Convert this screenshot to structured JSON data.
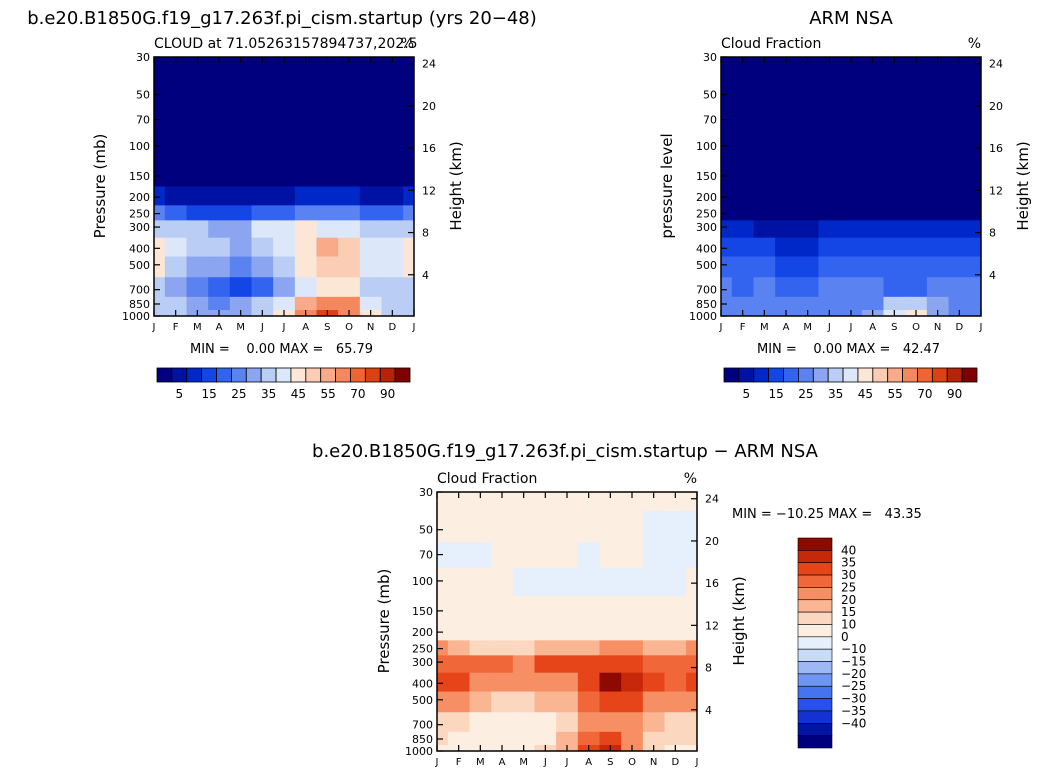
{
  "colors": {
    "cloud_scale": [
      "#00007f",
      "#0012a3",
      "#0028c8",
      "#1446e6",
      "#3264f0",
      "#5a82f0",
      "#8ca5f0",
      "#b9cdf5",
      "#dce8fa",
      "#fce6d6",
      "#fbcdb4",
      "#f9ab89",
      "#f5875f",
      "#f06432",
      "#dc4114",
      "#b4230a",
      "#7f0000"
    ],
    "diff_scale": [
      "#00007f",
      "#0014a5",
      "#1432d2",
      "#2850f0",
      "#4673f0",
      "#6e96f0",
      "#9cb9f5",
      "#c8dbfa",
      "#e6effc",
      "#fdeee2",
      "#fcd7bf",
      "#fab592",
      "#f68f64",
      "#f0683a",
      "#e64419",
      "#c8280a",
      "#8c0a00"
    ]
  },
  "chart_data": [
    {
      "type": "heatmap",
      "title": "b.e20.B1850G.f19_g17.263f.pi_cism.startup (yrs 20−48)",
      "subtitle_left": "CLOUD at 71.05263157894737,202.5",
      "subtitle_right": "%",
      "ylabel": "Pressure (mb)",
      "ylabel_right": "Height (km)",
      "x_ticks": [
        "J",
        "F",
        "M",
        "A",
        "M",
        "J",
        "J",
        "A",
        "S",
        "O",
        "N",
        "D",
        "J"
      ],
      "y_ticks": [
        "30",
        "50",
        "70",
        "100",
        "150",
        "200",
        "250",
        "300",
        "400",
        "500",
        "700",
        "850",
        "1000"
      ],
      "y_ticks_right": [
        "24",
        "20",
        "16",
        "12",
        "8",
        "4"
      ],
      "stats": "MIN =    0.00 MAX =   65.79",
      "colorbar_labels": [
        "5",
        "15",
        "25",
        "35",
        "45",
        "55",
        "70",
        "90"
      ],
      "levels": [
        30,
        50,
        70,
        100,
        150,
        200,
        250,
        300,
        400,
        500,
        700,
        850,
        1000
      ],
      "values": [
        [
          0,
          0,
          0,
          0,
          0,
          0,
          0,
          0,
          0,
          0,
          0,
          0,
          0
        ],
        [
          0,
          0,
          0,
          0,
          0,
          0,
          0,
          0,
          0,
          0,
          0,
          0,
          0
        ],
        [
          0,
          0,
          0,
          0,
          0,
          0,
          0,
          0,
          0,
          0,
          0,
          0,
          0
        ],
        [
          0,
          0,
          0,
          0,
          0,
          0,
          0,
          0,
          0,
          0,
          0,
          0,
          0
        ],
        [
          1,
          1,
          1,
          1,
          1,
          1,
          1,
          1,
          1,
          1,
          1,
          1,
          1
        ],
        [
          6,
          4,
          3,
          3,
          3,
          3,
          4,
          5,
          5,
          5,
          4,
          3,
          6
        ],
        [
          22,
          17,
          14,
          14,
          14,
          16,
          18,
          20,
          22,
          21,
          18,
          16,
          22
        ],
        [
          33,
          33,
          30,
          29,
          27,
          35,
          38,
          40,
          38,
          36,
          33,
          32,
          33
        ],
        [
          42,
          36,
          32,
          30,
          26,
          30,
          35,
          43,
          50,
          45,
          38,
          36,
          42
        ],
        [
          42,
          32,
          28,
          25,
          20,
          27,
          32,
          40,
          48,
          45,
          37,
          35,
          42
        ],
        [
          34,
          25,
          20,
          16,
          10,
          17,
          28,
          38,
          42,
          40,
          33,
          30,
          34
        ],
        [
          31,
          30,
          28,
          24,
          26,
          30,
          38,
          50,
          58,
          55,
          38,
          34,
          31
        ],
        [
          30,
          30,
          28,
          26,
          28,
          32,
          40,
          55,
          66,
          58,
          40,
          34,
          30
        ]
      ]
    },
    {
      "type": "heatmap",
      "title": "ARM NSA",
      "subtitle_left": "Cloud Fraction",
      "subtitle_right": "%",
      "ylabel": "pressure level",
      "ylabel_right": "Height (km)",
      "x_ticks": [
        "J",
        "F",
        "M",
        "A",
        "M",
        "J",
        "J",
        "A",
        "S",
        "O",
        "N",
        "D",
        "J"
      ],
      "y_ticks": [
        "30",
        "50",
        "70",
        "100",
        "150",
        "200",
        "250",
        "300",
        "400",
        "500",
        "700",
        "850",
        "1000"
      ],
      "y_ticks_right": [
        "24",
        "20",
        "16",
        "12",
        "8",
        "4"
      ],
      "stats": "MIN =    0.00 MAX =   42.47",
      "colorbar_labels": [
        "5",
        "15",
        "25",
        "35",
        "45",
        "55",
        "70",
        "90"
      ],
      "levels": [
        30,
        50,
        70,
        100,
        150,
        200,
        250,
        300,
        400,
        500,
        700,
        850,
        1000
      ],
      "values": [
        [
          0,
          0,
          0,
          0,
          0,
          0,
          0,
          0,
          0,
          0,
          0,
          0,
          0
        ],
        [
          0,
          0,
          0,
          0,
          0,
          0,
          0,
          0,
          0,
          0,
          0,
          0,
          0
        ],
        [
          0,
          0,
          0,
          0,
          0,
          0,
          0,
          0,
          0,
          0,
          0,
          0,
          0
        ],
        [
          0,
          0,
          0,
          0,
          0,
          0,
          0,
          0,
          0,
          0,
          0,
          0,
          0
        ],
        [
          0,
          0,
          0,
          0,
          0,
          0,
          0,
          0,
          0,
          0,
          0,
          0,
          0
        ],
        [
          0,
          0,
          0,
          0,
          0,
          0,
          0,
          0,
          0,
          0,
          0,
          0,
          0
        ],
        [
          1,
          1,
          1,
          1,
          1,
          1,
          1,
          1,
          1,
          1,
          1,
          1,
          1
        ],
        [
          6,
          5,
          3,
          3,
          3,
          5,
          6,
          7,
          6,
          5,
          5,
          5,
          6
        ],
        [
          14,
          13,
          11,
          9,
          8,
          11,
          14,
          14,
          13,
          11,
          12,
          12,
          14
        ],
        [
          19,
          17,
          15,
          14,
          12,
          15,
          17,
          18,
          16,
          15,
          17,
          17,
          19
        ],
        [
          20,
          19,
          20,
          19,
          17,
          20,
          21,
          20,
          19,
          19,
          20,
          20,
          20
        ],
        [
          24,
          23,
          22,
          21,
          22,
          22,
          22,
          24,
          30,
          34,
          26,
          24,
          24
        ],
        [
          24,
          23,
          23,
          23,
          23,
          22,
          24,
          26,
          38,
          42,
          28,
          24,
          24
        ]
      ]
    },
    {
      "type": "heatmap",
      "title": "b.e20.B1850G.f19_g17.263f.pi_cism.startup − ARM NSA",
      "subtitle_left": "Cloud Fraction",
      "subtitle_right": "%",
      "ylabel": "Pressure (mb)",
      "ylabel_right": "Height (km)",
      "x_ticks": [
        "J",
        "F",
        "M",
        "A",
        "M",
        "J",
        "J",
        "A",
        "S",
        "O",
        "N",
        "D",
        "J"
      ],
      "y_ticks": [
        "30",
        "50",
        "70",
        "100",
        "150",
        "200",
        "250",
        "300",
        "400",
        "500",
        "700",
        "850",
        "1000"
      ],
      "y_ticks_right": [
        "24",
        "20",
        "16",
        "12",
        "8",
        "4"
      ],
      "stats": "MIN = −10.25 MAX =   43.35",
      "colorbar_labels": [
        "40",
        "35",
        "30",
        "25",
        "20",
        "15",
        "10",
        "0",
        "−10",
        "−15",
        "−20",
        "−25",
        "−30",
        "−35",
        "−40"
      ],
      "levels": [
        30,
        50,
        70,
        100,
        150,
        200,
        250,
        300,
        400,
        500,
        700,
        850,
        1000
      ],
      "values": [
        [
          1,
          1,
          1,
          1,
          1,
          1,
          1,
          1,
          1,
          1,
          1,
          1,
          1
        ],
        [
          1,
          1,
          1,
          1,
          1,
          1,
          1,
          1,
          1,
          1,
          -1,
          -1,
          -1
        ],
        [
          -1,
          -1,
          -1,
          1,
          1,
          1,
          1,
          -1,
          1,
          1,
          -1,
          -1,
          -1
        ],
        [
          1,
          1,
          1,
          1,
          -1,
          -1,
          -1,
          -1,
          -1,
          -1,
          -1,
          -1,
          1
        ],
        [
          1,
          1,
          1,
          1,
          1,
          1,
          1,
          1,
          1,
          1,
          1,
          1,
          1
        ],
        [
          5,
          4,
          3,
          3,
          3,
          3,
          4,
          5,
          5,
          5,
          4,
          3,
          5
        ],
        [
          20,
          16,
          13,
          13,
          13,
          15,
          17,
          19,
          21,
          20,
          17,
          15,
          20
        ],
        [
          28,
          27,
          27,
          26,
          24,
          30,
          33,
          34,
          32,
          31,
          28,
          27,
          28
        ],
        [
          31,
          33,
          24,
          22,
          20,
          22,
          22,
          31,
          40,
          38,
          30,
          26,
          31
        ],
        [
          22,
          22,
          16,
          11,
          10,
          15,
          18,
          26,
          33,
          30,
          24,
          20,
          22
        ],
        [
          14,
          10,
          6,
          5,
          5,
          7,
          10,
          20,
          24,
          22,
          16,
          12,
          14
        ],
        [
          10,
          9,
          8,
          6,
          5,
          9,
          18,
          27,
          31,
          24,
          13,
          10,
          10
        ],
        [
          6,
          8,
          5,
          3,
          5,
          12,
          18,
          30,
          36,
          20,
          12,
          8,
          6
        ]
      ]
    }
  ]
}
